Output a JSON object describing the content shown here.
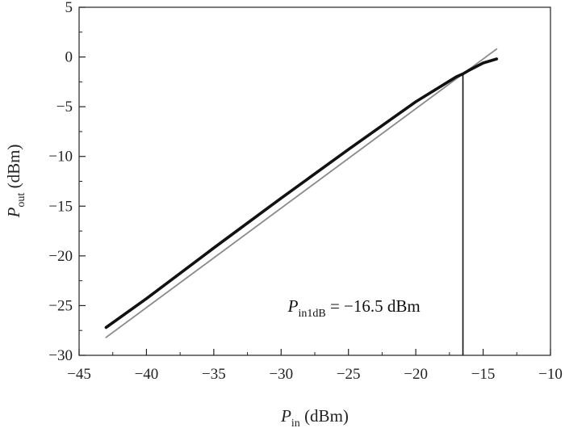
{
  "chart_data": {
    "type": "line",
    "xlabel": {
      "main": "P",
      "sub": "in",
      "rest": " (dBm)"
    },
    "ylabel": {
      "main": "P",
      "sub": "out",
      "rest": " (dBm)"
    },
    "xlim": [
      -45,
      -10
    ],
    "ylim": [
      -30,
      5
    ],
    "xticks": [
      -45,
      -40,
      -35,
      -30,
      -25,
      -20,
      -15,
      -10
    ],
    "yticks": [
      -30,
      -25,
      -20,
      -15,
      -10,
      -5,
      0,
      5
    ],
    "xtick_labels": [
      "−45",
      "−40",
      "−35",
      "−30",
      "−25",
      "−20",
      "−15",
      "−10"
    ],
    "ytick_labels": [
      "−30",
      "−25",
      "−20",
      "−15",
      "−10",
      "−5",
      "0",
      "5"
    ],
    "grid": false,
    "series": [
      {
        "style": "thick-black",
        "color": "#111111",
        "x": [
          -43,
          -40,
          -35,
          -30,
          -25,
          -20,
          -17,
          -16.5,
          -16,
          -15,
          -14
        ],
        "y": [
          -27.2,
          -24.3,
          -19.2,
          -14.2,
          -9.3,
          -4.5,
          -2.0,
          -1.7,
          -1.3,
          -0.6,
          -0.2
        ]
      },
      {
        "style": "thin-gray",
        "color": "#8a8a8a",
        "x": [
          -43,
          -14
        ],
        "y": [
          -28.2,
          0.8
        ]
      }
    ],
    "marker_line": {
      "x": -16.5,
      "y_from": -30,
      "y_to": -1.7
    },
    "annotation": {
      "main": "P",
      "sub": "in1dB",
      "rest": " = −16.5 dBm",
      "x": -29.5,
      "y": -25.6
    }
  }
}
